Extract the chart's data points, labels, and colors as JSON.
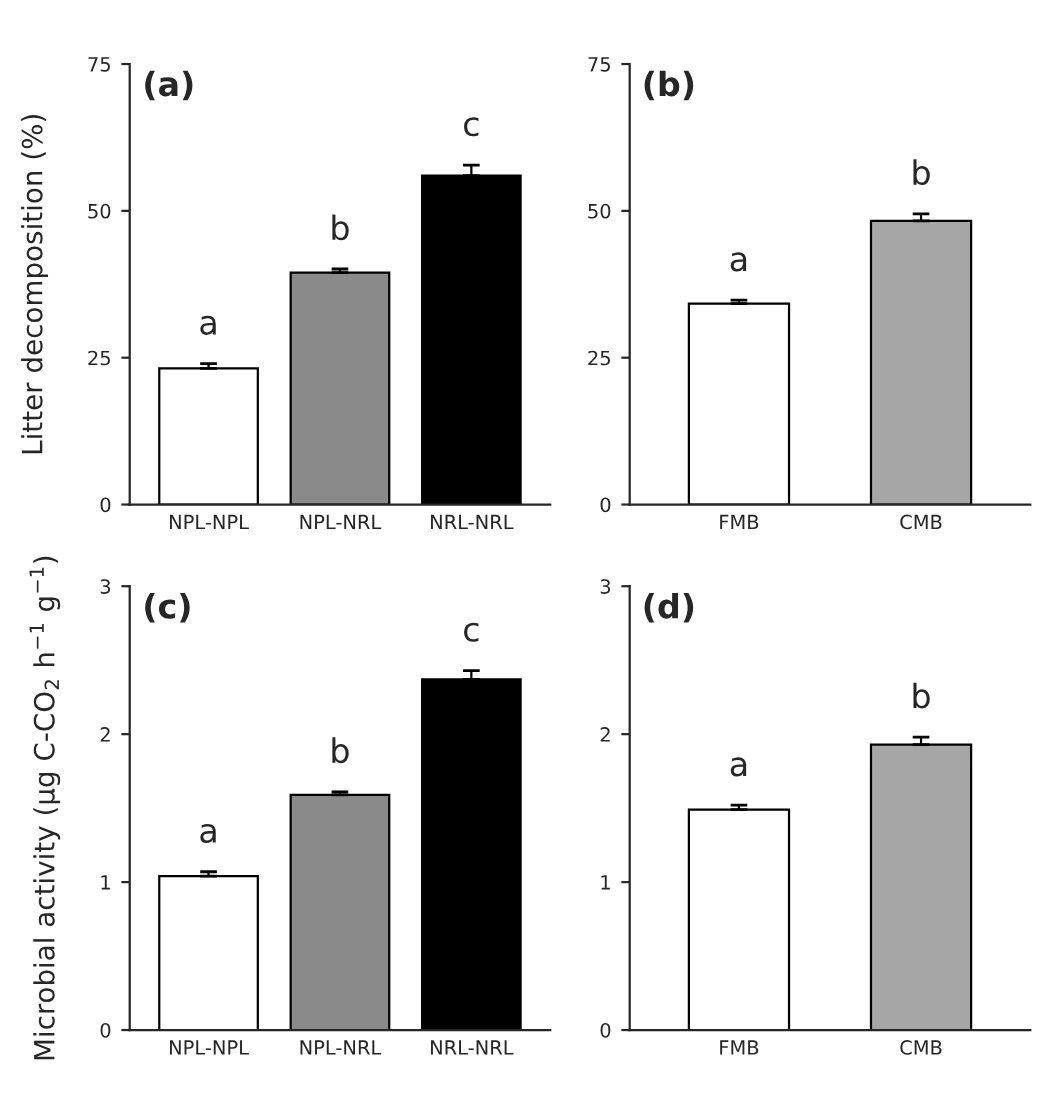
{
  "chart_data": [
    {
      "type": "bar",
      "title": "(a)",
      "ylabel": "Litter decomposition (%)",
      "categories": [
        "NPL-NPL",
        "NPL-NRL",
        "NRL-NRL"
      ],
      "values": [
        23.2,
        39.5,
        56.0
      ],
      "errors": [
        0.8,
        0.6,
        1.8
      ],
      "colors": [
        "#ffffff",
        "#8a8a8a",
        "#000000"
      ],
      "ylim": [
        0,
        75
      ],
      "yticks": [
        0,
        25,
        50,
        75
      ],
      "grid": false,
      "annotations": [
        "a",
        "b",
        "c"
      ]
    },
    {
      "type": "bar",
      "title": "(b)",
      "categories": [
        "FMB",
        "CMB"
      ],
      "values": [
        34.2,
        48.3
      ],
      "errors": [
        0.6,
        1.2
      ],
      "colors": [
        "#ffffff",
        "#a6a6a6"
      ],
      "ylim": [
        0,
        75
      ],
      "yticks": [
        0,
        25,
        50,
        75
      ],
      "grid": false,
      "annotations": [
        "a",
        "b"
      ]
    },
    {
      "type": "bar",
      "title": "(c)",
      "ylabel": "Microbial activity (µg C-CO$_{2}$ h$^{−1}$ g$^{−1}$)",
      "categories": [
        "NPL-NPL",
        "NPL-NRL",
        "NRL-NRL"
      ],
      "values": [
        1.04,
        1.59,
        2.37
      ],
      "errors": [
        0.03,
        0.02,
        0.06
      ],
      "colors": [
        "#ffffff",
        "#8a8a8a",
        "#000000"
      ],
      "ylim": [
        0,
        3
      ],
      "yticks": [
        0,
        1,
        2,
        3
      ],
      "grid": false,
      "annotations": [
        "a",
        "b",
        "c"
      ]
    },
    {
      "type": "bar",
      "title": "(d)",
      "categories": [
        "FMB",
        "CMB"
      ],
      "values": [
        1.49,
        1.93
      ],
      "errors": [
        0.03,
        0.05
      ],
      "colors": [
        "#ffffff",
        "#a6a6a6"
      ],
      "ylim": [
        0,
        3
      ],
      "yticks": [
        0,
        1,
        2,
        3
      ],
      "grid": false,
      "annotations": [
        "a",
        "b"
      ]
    }
  ]
}
